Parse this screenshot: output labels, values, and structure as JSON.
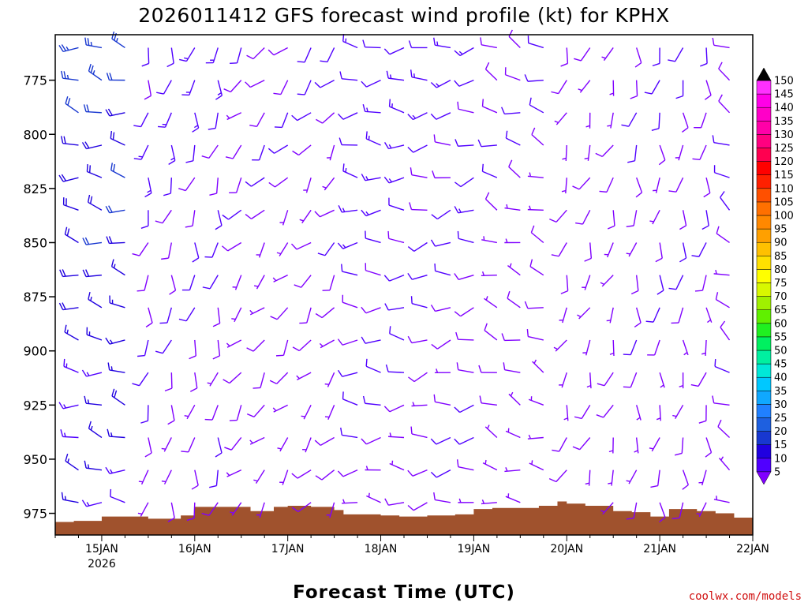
{
  "chart_data": {
    "type": "wind-barb-time-height",
    "title": "2026011412 GFS forecast wind profile (kt) for KPHX",
    "xlabel": "Forecast Time (UTC)",
    "credit": "coolwx.com/models",
    "x_ticks": [
      "15JAN",
      "16JAN",
      "17JAN",
      "18JAN",
      "19JAN",
      "20JAN",
      "21JAN",
      "22JAN"
    ],
    "x_year_label": "2026",
    "x_range_days": [
      -0.5,
      7.0
    ],
    "y_ticks": [
      775,
      800,
      825,
      850,
      875,
      900,
      925,
      950,
      975
    ],
    "ylim_hPa": [
      754,
      985
    ],
    "y_axis_reversed": true,
    "colorbar": {
      "unit": "kt",
      "levels": [
        5,
        10,
        15,
        20,
        25,
        30,
        35,
        40,
        45,
        50,
        55,
        60,
        65,
        70,
        75,
        80,
        85,
        90,
        95,
        100,
        105,
        110,
        115,
        120,
        125,
        130,
        135,
        140,
        145,
        150
      ],
      "colors": [
        "#8000ff",
        "#5000ff",
        "#2000e0",
        "#1838d0",
        "#1e60e0",
        "#2080ff",
        "#10a8ff",
        "#00c8ff",
        "#00e8d8",
        "#00f0a0",
        "#00f060",
        "#20f020",
        "#60f000",
        "#a0f000",
        "#d8f800",
        "#ffff00",
        "#ffe000",
        "#ffc000",
        "#ffa000",
        "#ff8800",
        "#ff7000",
        "#ff5000",
        "#ff2000",
        "#ff0000",
        "#ff0050",
        "#ff0080",
        "#ff00a8",
        "#ff00c8",
        "#ff00e8",
        "#ff30ff"
      ]
    },
    "terrain_color": "#a0522d",
    "terrain_surface_pressure_hPa": {
      "days": [
        -0.5,
        -0.3,
        0.0,
        0.25,
        0.5,
        0.7,
        0.85,
        1.0,
        1.5,
        1.6,
        1.85,
        2.0,
        2.25,
        2.5,
        2.6,
        2.8,
        3.0,
        3.2,
        3.5,
        3.8,
        4.0,
        4.2,
        4.5,
        4.7,
        4.9,
        5.0,
        5.2,
        5.5,
        5.7,
        5.9,
        6.1,
        6.4,
        6.6,
        6.8,
        7.0
      ],
      "pressure": [
        979,
        978.5,
        976.5,
        976.5,
        977.5,
        977.5,
        976,
        972,
        972,
        974,
        972,
        971.5,
        972,
        973.5,
        975.5,
        975.5,
        976,
        976.5,
        976,
        975.5,
        973,
        972.5,
        972.5,
        971.5,
        969.5,
        970.5,
        971.5,
        974,
        974.5,
        976.5,
        973,
        974,
        975,
        977,
        977
      ]
    },
    "barb_levels_hPa": [
      760,
      775,
      790,
      805,
      820,
      835,
      850,
      865,
      880,
      895,
      910,
      925,
      940,
      955,
      970
    ],
    "barb_interval_hours": 6,
    "wind_regimes": [
      {
        "period": "14JAN18Z-15JAN12Z",
        "direction_deg": 280,
        "speed_kt_aloft": 22,
        "speed_kt_low": 14
      },
      {
        "period": "15JAN12Z-16JAN12Z",
        "direction_deg": 190,
        "speed_kt_aloft": 12,
        "speed_kt_low": 8
      },
      {
        "period": "16JAN12Z-17JAN18Z",
        "direction_deg": 220,
        "speed_kt_aloft": 10,
        "speed_kt_low": 6
      },
      {
        "period": "17JAN18Z-18JAN12Z",
        "direction_deg": 270,
        "speed_kt_aloft": 14,
        "speed_kt_low": 8
      },
      {
        "period": "18JAN12Z-19JAN06Z",
        "direction_deg": 260,
        "speed_kt_aloft": 12,
        "speed_kt_low": 8
      },
      {
        "period": "19JAN06Z-20JAN00Z",
        "direction_deg": 290,
        "speed_kt_aloft": 10,
        "speed_kt_low": 6
      },
      {
        "period": "20JAN00Z-20JAN18Z",
        "direction_deg": 200,
        "speed_kt_aloft": 8,
        "speed_kt_low": 6
      },
      {
        "period": "20JAN18Z-21JAN18Z",
        "direction_deg": 185,
        "speed_kt_aloft": 10,
        "speed_kt_low": 7
      },
      {
        "period": "21JAN18Z-22JAN00Z",
        "direction_deg": 300,
        "speed_kt_aloft": 10,
        "speed_kt_low": 8
      }
    ]
  }
}
